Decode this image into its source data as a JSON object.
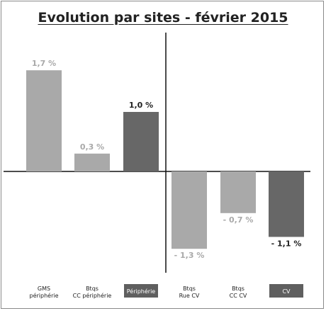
{
  "chart_data": {
    "type": "bar",
    "title": "Evolution par sites - février 2015",
    "categories": [
      {
        "lines": [
          "GMS",
          "périphérie"
        ],
        "highlight": false
      },
      {
        "lines": [
          "Btqs",
          "CC périphérie"
        ],
        "highlight": false
      },
      {
        "lines": [
          "Périphérie"
        ],
        "highlight": true
      },
      {
        "lines": [
          "Btqs",
          "Rue CV"
        ],
        "highlight": false
      },
      {
        "lines": [
          "Btqs",
          "CC CV"
        ],
        "highlight": false
      },
      {
        "lines": [
          "CV"
        ],
        "highlight": true
      }
    ],
    "values": [
      1.7,
      0.3,
      1.0,
      -1.3,
      -0.7,
      -1.1
    ],
    "value_labels": [
      "1,7 %",
      "0,3 %",
      "1,0 %",
      "- 1,3 %",
      "- 0,7 %",
      "- 1,1 %"
    ],
    "colors": [
      "#a9a9a9",
      "#a9a9a9",
      "#676767",
      "#a9a9a9",
      "#a9a9a9",
      "#676767"
    ],
    "label_colors": [
      "#a9a9a9",
      "#a9a9a9",
      "#222222",
      "#a9a9a9",
      "#a9a9a9",
      "#222222"
    ],
    "highlight_color": "#5f5f5f",
    "grid": false,
    "ylim": [
      -1.7,
      2.0
    ]
  }
}
